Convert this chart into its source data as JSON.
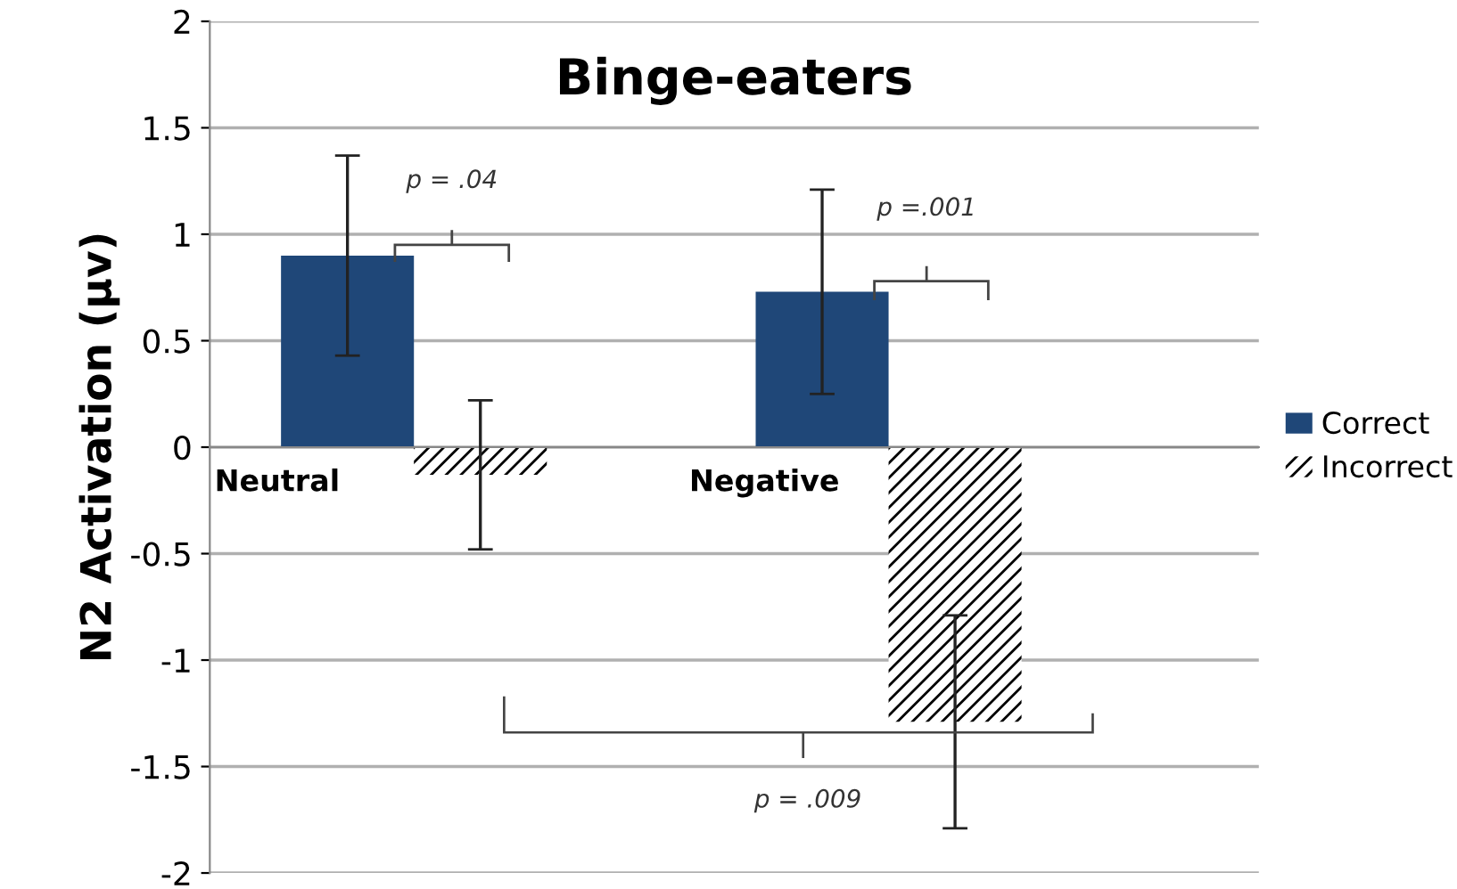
{
  "chart_data": {
    "type": "bar",
    "title": "Binge-eaters",
    "ylabel": "N2 Activation (µv)",
    "categories": [
      "Neutral",
      "Negative"
    ],
    "series": [
      {
        "name": "Correct",
        "color": "#1f4778",
        "values": [
          0.9,
          0.73
        ],
        "errors": [
          0.47,
          0.48
        ]
      },
      {
        "name": "Incorrect",
        "color": "#000000",
        "values": [
          -0.13,
          -1.29
        ],
        "errors": [
          0.35,
          0.5
        ]
      }
    ],
    "ylim": [
      -2,
      2
    ],
    "yticks": [
      {
        "value": -2,
        "label": "-2"
      },
      {
        "value": -1.5,
        "label": "-1.5"
      },
      {
        "value": -1,
        "label": "-1"
      },
      {
        "value": -0.5,
        "label": "-0.5"
      },
      0,
      0.5,
      1,
      1.5,
      2
    ],
    "annotations": [
      "p = .04",
      "p =.001",
      "p = .009"
    ],
    "grid": "y",
    "legend": "right"
  }
}
